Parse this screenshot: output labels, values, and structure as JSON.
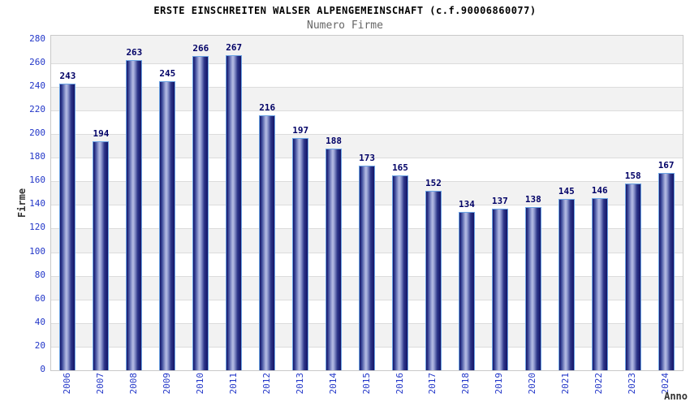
{
  "title": "ERSTE EINSCHREITEN WALSER ALPENGEMEINSCHAFT (c.f.90006860077)",
  "subtitle": "Numero Firme",
  "chart_data": {
    "type": "bar",
    "title": "ERSTE EINSCHREITEN WALSER ALPENGEMEINSCHAFT (c.f.90006860077)",
    "subtitle": "Numero Firme",
    "categories": [
      "2006",
      "2007",
      "2008",
      "2009",
      "2010",
      "2011",
      "2012",
      "2013",
      "2014",
      "2015",
      "2016",
      "2017",
      "2018",
      "2019",
      "2020",
      "2021",
      "2022",
      "2023",
      "2024"
    ],
    "values": [
      243,
      194,
      263,
      245,
      266,
      267,
      216,
      197,
      188,
      173,
      165,
      152,
      134,
      137,
      138,
      145,
      146,
      158,
      167
    ],
    "xlabel": "Anno",
    "ylabel": "Firme",
    "ylim": [
      0,
      280
    ],
    "y_ticks": [
      0,
      20,
      40,
      60,
      80,
      100,
      120,
      140,
      160,
      180,
      200,
      220,
      240,
      260,
      280
    ],
    "grid": "horizontal alternating bands, gray/white every 20 units, gridline at each 20",
    "legend": false,
    "value_labels": "above each bar"
  },
  "colors": {
    "bar_dark": "#141466",
    "bar_light": "#b7bde4",
    "bar_border": "#6ca4e4",
    "tick_label": "#2236c8",
    "value_label": "#000066",
    "band_gray": "#f2f2f2",
    "gridline": "#dcdcdc",
    "subtitle": "#666666",
    "axis_title": "#333333"
  }
}
